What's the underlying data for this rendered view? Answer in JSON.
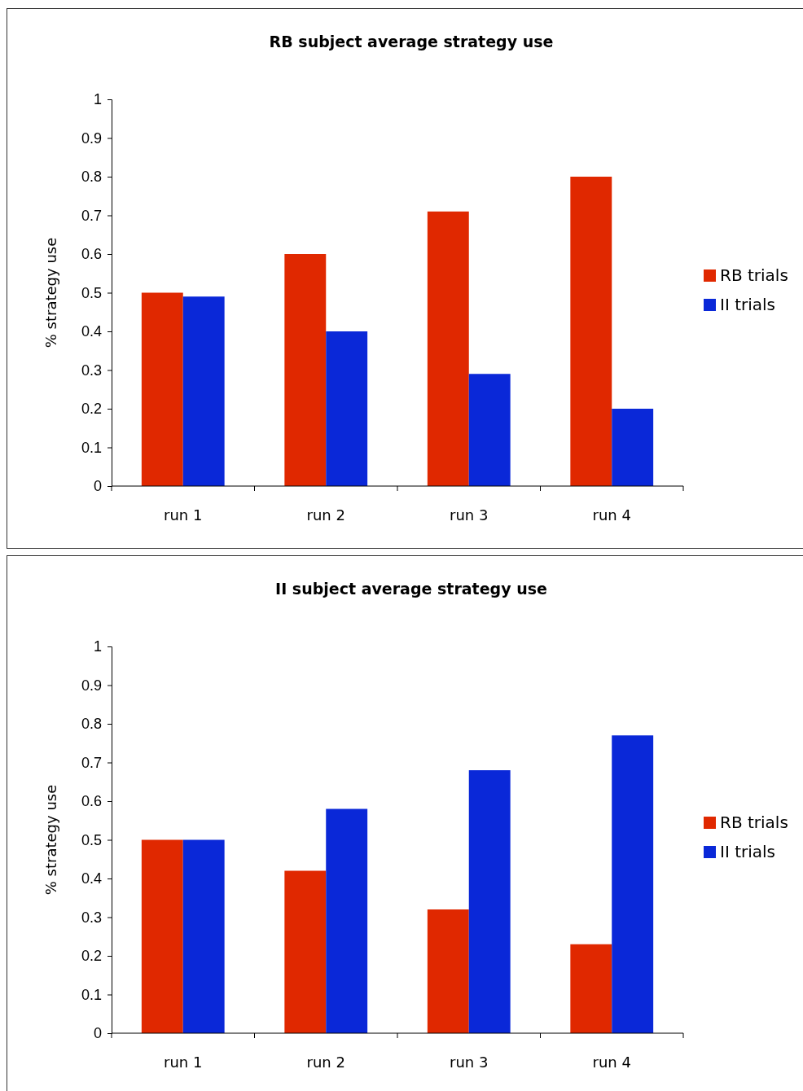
{
  "chart_data": [
    {
      "type": "bar",
      "title": "RB subject average strategy use",
      "ylabel": "% strategy use",
      "categories": [
        "run 1",
        "run 2",
        "run 3",
        "run 4"
      ],
      "ylim": [
        0,
        1
      ],
      "yticks": [
        0,
        0.1,
        0.2,
        0.3,
        0.4,
        0.5,
        0.6,
        0.7,
        0.8,
        0.9,
        1
      ],
      "legend": "right",
      "series": [
        {
          "name": "RB trials",
          "color": "#e02800",
          "values": [
            0.5,
            0.6,
            0.71,
            0.8
          ]
        },
        {
          "name": "II trials",
          "color": "#0a28d8",
          "values": [
            0.49,
            0.4,
            0.29,
            0.2
          ]
        }
      ]
    },
    {
      "type": "bar",
      "title": "II subject average strategy use",
      "ylabel": "% strategy use",
      "categories": [
        "run 1",
        "run 2",
        "run 3",
        "run 4"
      ],
      "ylim": [
        0,
        1
      ],
      "yticks": [
        0,
        0.1,
        0.2,
        0.3,
        0.4,
        0.5,
        0.6,
        0.7,
        0.8,
        0.9,
        1
      ],
      "legend": "right",
      "series": [
        {
          "name": "RB trials",
          "color": "#e02800",
          "values": [
            0.5,
            0.42,
            0.32,
            0.23
          ]
        },
        {
          "name": "II trials",
          "color": "#0a28d8",
          "values": [
            0.5,
            0.58,
            0.68,
            0.77
          ]
        }
      ]
    }
  ]
}
